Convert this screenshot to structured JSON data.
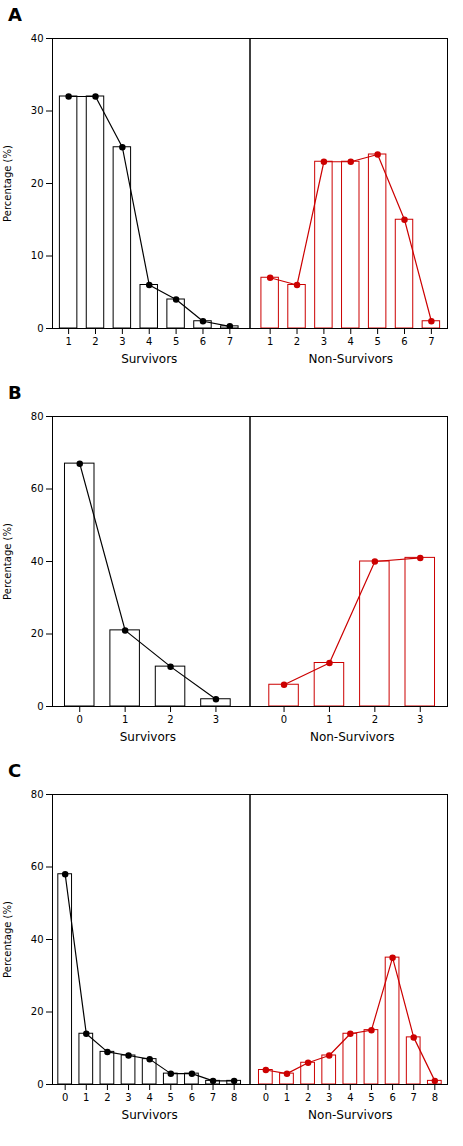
{
  "chart_data": [
    {
      "type": "bar",
      "title": "A",
      "ylabel": "Percentage (%)",
      "ylim": [
        0,
        40
      ],
      "yticks": [
        0,
        10,
        20,
        30,
        40
      ],
      "marker": "circle",
      "series": [
        {
          "name": "Survivors",
          "color": "#000000",
          "x": [
            1,
            2,
            3,
            4,
            5,
            6,
            7
          ],
          "values": [
            32,
            32,
            25,
            6,
            4,
            1,
            0.3
          ]
        },
        {
          "name": "Non-Survivors",
          "color": "#cc0000",
          "x": [
            1,
            2,
            3,
            4,
            5,
            6,
            7
          ],
          "values": [
            7,
            6,
            23,
            23,
            24,
            15,
            1
          ]
        }
      ]
    },
    {
      "type": "bar",
      "title": "B",
      "ylabel": "Percentage (%)",
      "ylim": [
        0,
        80
      ],
      "yticks": [
        0,
        20,
        40,
        60,
        80
      ],
      "marker": "circle",
      "series": [
        {
          "name": "Survivors",
          "color": "#000000",
          "x": [
            0,
            1,
            2,
            3
          ],
          "values": [
            67,
            21,
            11,
            2
          ]
        },
        {
          "name": "Non-Survivors",
          "color": "#cc0000",
          "x": [
            0,
            1,
            2,
            3
          ],
          "values": [
            6,
            12,
            40,
            41
          ]
        }
      ]
    },
    {
      "type": "bar",
      "title": "C",
      "ylabel": "Percentage (%)",
      "ylim": [
        0,
        80
      ],
      "yticks": [
        0,
        20,
        40,
        60,
        80
      ],
      "marker": "circle",
      "series": [
        {
          "name": "Survivors",
          "color": "#000000",
          "x": [
            0,
            1,
            2,
            3,
            4,
            5,
            6,
            7,
            8
          ],
          "values": [
            58,
            14,
            9,
            8,
            7,
            3,
            3,
            1,
            1
          ]
        },
        {
          "name": "Non-Survivors",
          "color": "#cc0000",
          "x": [
            0,
            1,
            2,
            3,
            4,
            5,
            6,
            7,
            8
          ],
          "values": [
            4,
            3,
            6,
            8,
            14,
            15,
            35,
            13,
            1
          ]
        }
      ]
    }
  ]
}
